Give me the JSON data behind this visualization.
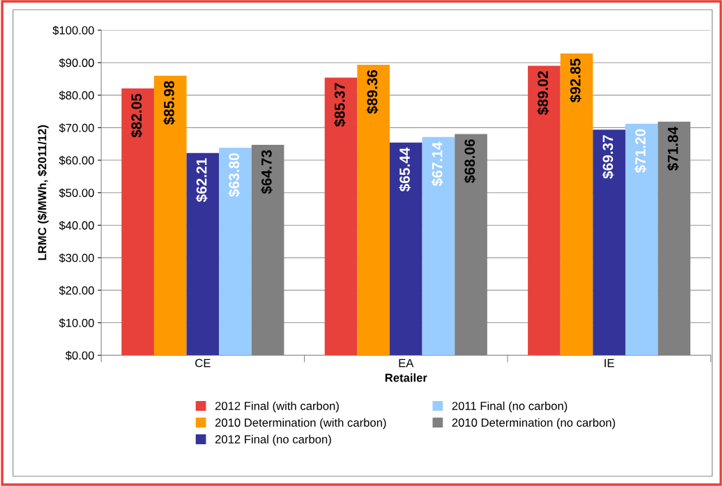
{
  "chart_data": {
    "type": "bar",
    "xlabel": "Retailer",
    "ylabel": "LRMC ($/MWh, $2011/12)",
    "categories": [
      "CE",
      "EA",
      "IE"
    ],
    "series": [
      {
        "name": "2012 Final (with carbon)",
        "color": "#e8403a",
        "values": [
          82.05,
          85.37,
          89.02
        ],
        "value_labels": [
          "$82.05",
          "$85.37",
          "$89.02"
        ]
      },
      {
        "name": "2010 Determination (with carbon)",
        "color": "#ff9900",
        "values": [
          85.98,
          89.36,
          92.85
        ],
        "value_labels": [
          "$85.98",
          "$89.36",
          "$92.85"
        ]
      },
      {
        "name": "2012 Final (no carbon)",
        "color": "#333399",
        "values": [
          62.21,
          65.44,
          69.37
        ],
        "value_labels": [
          "$62.21",
          "$65.44",
          "$69.37"
        ]
      },
      {
        "name": "2011 Final (no carbon)",
        "color": "#99ccff",
        "values": [
          63.8,
          67.14,
          71.2
        ],
        "value_labels": [
          "$63.80",
          "$67.14",
          "$71.20"
        ]
      },
      {
        "name": "2010 Determination (no carbon)",
        "color": "#808080",
        "values": [
          64.73,
          68.06,
          71.84
        ],
        "value_labels": [
          "$64.73",
          "$68.06",
          "$71.84"
        ]
      }
    ],
    "ylim": [
      0,
      100
    ],
    "yticks": [
      {
        "value": 0,
        "label": "$0.00"
      },
      {
        "value": 10,
        "label": "$10.00"
      },
      {
        "value": 20,
        "label": "$20.00"
      },
      {
        "value": 30,
        "label": "$30.00"
      },
      {
        "value": 40,
        "label": "$40.00"
      },
      {
        "value": 50,
        "label": "$50.00"
      },
      {
        "value": 60,
        "label": "$60.00"
      },
      {
        "value": 70,
        "label": "$70.00"
      },
      {
        "value": 80,
        "label": "$80.00"
      },
      {
        "value": 90,
        "label": "$90.00"
      },
      {
        "value": 100,
        "label": "$100.00"
      }
    ],
    "grid": "y",
    "legend": "bottom"
  }
}
